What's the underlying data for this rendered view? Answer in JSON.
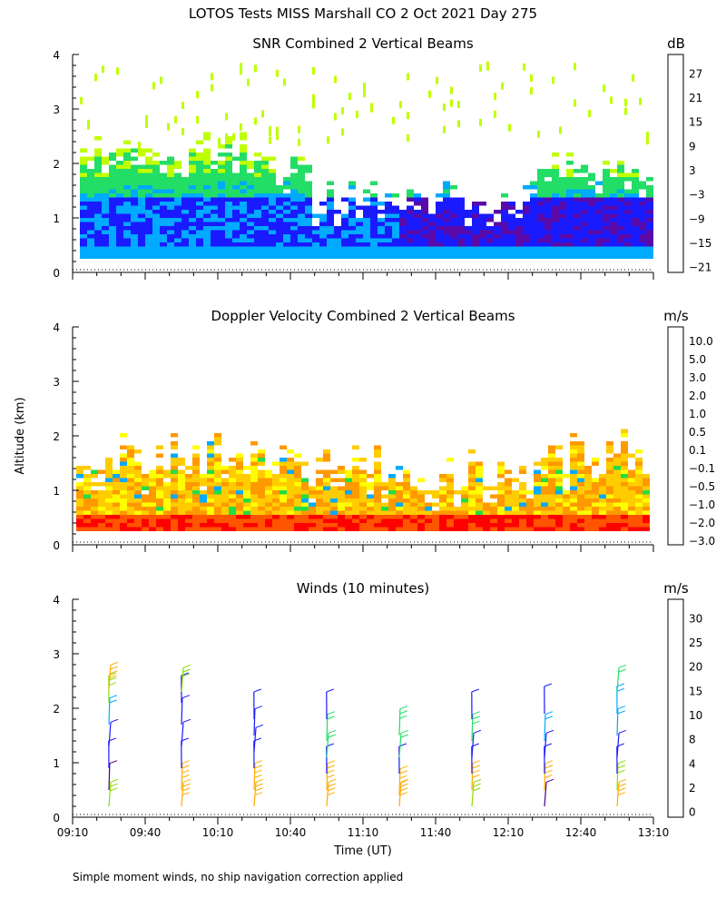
{
  "title": "LOTOS Tests MISS Marshall CO   2 Oct 2021 Day 275",
  "footnote": "Simple moment winds, no ship navigation correction applied",
  "chart_data": [
    {
      "type": "heatmap",
      "title": "SNR Combined 2 Vertical Beams",
      "ylabel": "",
      "ylim": [
        0,
        4
      ],
      "yticks": [
        0,
        1,
        2,
        3,
        4
      ],
      "xlim_label": [
        "09:10",
        "13:10"
      ],
      "colorbar_unit": "dB",
      "colorbar_labels": [
        "27",
        "21",
        "15",
        "9",
        "3",
        "−3",
        "−9",
        "−15",
        "−21"
      ],
      "colorbar_colors": [
        "#ffbf00",
        "#ff7f00",
        "#ff1a00",
        "#3d005c",
        "#5a0aa8",
        "#1a1aff",
        "#00aaff",
        "#22dd66",
        "#bfff00"
      ],
      "field": {
        "altitude_range_km": [
          0.25,
          2.5
        ],
        "time_range": [
          "09:10",
          "13:10"
        ],
        "description_values_dB": [
          {
            "alt_km": 0.3,
            "snr": -9
          },
          {
            "alt_km": 0.6,
            "snr": -6
          },
          {
            "alt_km": 1.0,
            "snr": -4
          },
          {
            "alt_km": 1.5,
            "snr": -14
          },
          {
            "alt_km": 2.0,
            "snr": -19
          }
        ]
      }
    },
    {
      "type": "heatmap",
      "title": "Doppler Velocity Combined 2 Vertical Beams",
      "ylabel": "Altitude (km)",
      "ylim": [
        0,
        4
      ],
      "yticks": [
        0,
        1,
        2,
        3,
        4
      ],
      "colorbar_unit": "m/s",
      "colorbar_labels": [
        "10.0",
        "5.0",
        "3.0",
        "2.0",
        "1.0",
        "0.5",
        "0.1",
        "−0.1",
        "−0.5",
        "−1.0",
        "−2.0",
        "−3.0"
      ],
      "colorbar_colors": [
        "#2a0033",
        "#4b0082",
        "#3300cc",
        "#0033ff",
        "#00aaff",
        "#22dd44",
        "#99ee00",
        "#ffff00",
        "#ffcc00",
        "#ff9900",
        "#ff5500",
        "#ff0000"
      ],
      "field": {
        "altitude_range_km": [
          0.25,
          2.3
        ],
        "time_range": [
          "09:10",
          "13:10"
        ],
        "description_values_ms": [
          {
            "alt_km": 0.4,
            "w": -1.5
          },
          {
            "alt_km": 0.8,
            "w": -0.5
          },
          {
            "alt_km": 1.2,
            "w": 0.0
          },
          {
            "alt_km": 1.8,
            "w": -0.3
          }
        ]
      }
    },
    {
      "type": "scatter",
      "title": "Winds (10 minutes)",
      "xlabel": "Time (UT)",
      "ylabel": "",
      "ylim": [
        0,
        4
      ],
      "yticks": [
        0,
        1,
        2,
        3,
        4
      ],
      "x_tick_labels": [
        "09:10",
        "09:40",
        "10:10",
        "10:40",
        "11:10",
        "11:40",
        "12:10",
        "12:40",
        "13:10"
      ],
      "colorbar_unit": "m/s",
      "colorbar_labels": [
        "30",
        "25",
        "20",
        "15",
        "10",
        "8",
        "4",
        "2",
        "0"
      ],
      "colorbar_colors": [
        "#ff0000",
        "#ff5500",
        "#ffaa00",
        "#88dd00",
        "#22dd66",
        "#00aaff",
        "#1a1aff",
        "#4b0082",
        "#000000"
      ],
      "profile_times": [
        "09:25",
        "09:55",
        "10:25",
        "10:55",
        "11:25",
        "11:55",
        "12:25",
        "12:55"
      ],
      "profiles": [
        {
          "time": "09:25",
          "barbs": [
            {
              "alt": 0.2,
              "spd": 15
            },
            {
              "alt": 0.5,
              "spd": 3
            },
            {
              "alt": 0.9,
              "spd": 4
            },
            {
              "alt": 1.3,
              "spd": 6
            },
            {
              "alt": 1.7,
              "spd": 9
            },
            {
              "alt": 2.1,
              "spd": 17
            },
            {
              "alt": 2.35,
              "spd": 20
            }
          ]
        },
        {
          "time": "09:55",
          "barbs": [
            {
              "alt": 0.2,
              "spd": 20
            },
            {
              "alt": 0.5,
              "spd": 22
            },
            {
              "alt": 0.9,
              "spd": 5
            },
            {
              "alt": 1.3,
              "spd": 5
            },
            {
              "alt": 1.7,
              "spd": 6
            },
            {
              "alt": 2.1,
              "spd": 5
            },
            {
              "alt": 2.3,
              "spd": 16
            }
          ]
        },
        {
          "time": "10:25",
          "barbs": [
            {
              "alt": 0.2,
              "spd": 21
            },
            {
              "alt": 0.5,
              "spd": 21
            },
            {
              "alt": 0.9,
              "spd": 5
            },
            {
              "alt": 1.2,
              "spd": 5
            },
            {
              "alt": 1.5,
              "spd": 7
            },
            {
              "alt": 1.8,
              "spd": 4
            }
          ]
        },
        {
          "time": "10:55",
          "barbs": [
            {
              "alt": 0.2,
              "spd": 22
            },
            {
              "alt": 0.5,
              "spd": 20
            },
            {
              "alt": 0.8,
              "spd": 4
            },
            {
              "alt": 1.1,
              "spd": 10
            },
            {
              "alt": 1.4,
              "spd": 12
            },
            {
              "alt": 1.8,
              "spd": 5
            }
          ]
        },
        {
          "time": "11:25",
          "barbs": [
            {
              "alt": 0.2,
              "spd": 21
            },
            {
              "alt": 0.4,
              "spd": 22
            },
            {
              "alt": 0.8,
              "spd": 4
            },
            {
              "alt": 1.1,
              "spd": 12
            },
            {
              "alt": 1.5,
              "spd": 14
            }
          ]
        },
        {
          "time": "11:55",
          "barbs": [
            {
              "alt": 0.2,
              "spd": 16
            },
            {
              "alt": 0.5,
              "spd": 21
            },
            {
              "alt": 0.8,
              "spd": 4
            },
            {
              "alt": 1.1,
              "spd": 6
            },
            {
              "alt": 1.4,
              "spd": 13
            },
            {
              "alt": 1.8,
              "spd": 6
            }
          ]
        },
        {
          "time": "12:25",
          "barbs": [
            {
              "alt": 0.2,
              "spd": 3
            },
            {
              "alt": 0.5,
              "spd": 21
            },
            {
              "alt": 0.8,
              "spd": 5
            },
            {
              "alt": 1.1,
              "spd": 4
            },
            {
              "alt": 1.4,
              "spd": 9
            },
            {
              "alt": 1.9,
              "spd": 5
            }
          ]
        },
        {
          "time": "12:55",
          "barbs": [
            {
              "alt": 0.2,
              "spd": 20
            },
            {
              "alt": 0.5,
              "spd": 17
            },
            {
              "alt": 0.8,
              "spd": 5
            },
            {
              "alt": 1.1,
              "spd": 5
            },
            {
              "alt": 1.5,
              "spd": 9
            },
            {
              "alt": 1.9,
              "spd": 9
            },
            {
              "alt": 2.3,
              "spd": 10
            }
          ]
        }
      ]
    }
  ]
}
